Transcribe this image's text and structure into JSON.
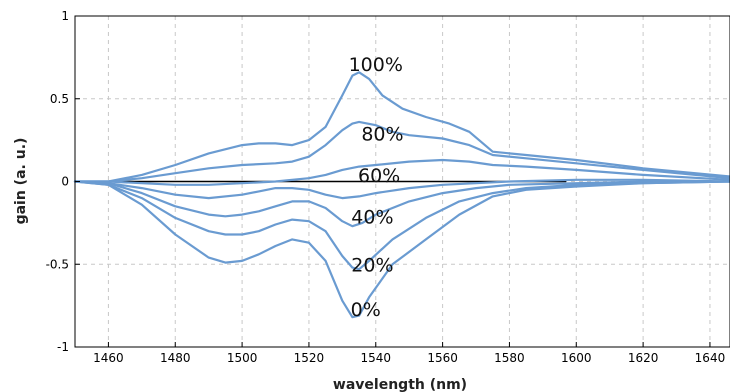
{
  "chart_data": {
    "type": "line",
    "xlabel": "wavelength (nm)",
    "ylabel": "gain (a. u.)",
    "xlim": [
      1450,
      1646
    ],
    "ylim": [
      -1,
      1
    ],
    "x_ticks": [
      1460,
      1480,
      1500,
      1520,
      1540,
      1560,
      1580,
      1600,
      1620,
      1640
    ],
    "y_ticks": [
      -1,
      -0.5,
      0,
      0.5,
      1
    ],
    "y_tick_labels": [
      "-1",
      "-0.5",
      "0",
      "0.5",
      "1"
    ],
    "grid": true,
    "line_color": "#6a9bd1",
    "reference_line": {
      "y": 0,
      "x_range": [
        1450,
        1597
      ],
      "color": "#000000"
    },
    "series": [
      {
        "label": "100%",
        "label_at": [
          1540,
          0.71
        ],
        "points": [
          [
            1450,
            0
          ],
          [
            1460,
            0.0
          ],
          [
            1470,
            0.04
          ],
          [
            1480,
            0.1
          ],
          [
            1490,
            0.17
          ],
          [
            1500,
            0.22
          ],
          [
            1505,
            0.23
          ],
          [
            1510,
            0.23
          ],
          [
            1515,
            0.22
          ],
          [
            1520,
            0.25
          ],
          [
            1525,
            0.33
          ],
          [
            1530,
            0.52
          ],
          [
            1533,
            0.64
          ],
          [
            1535,
            0.66
          ],
          [
            1538,
            0.62
          ],
          [
            1542,
            0.52
          ],
          [
            1548,
            0.44
          ],
          [
            1555,
            0.39
          ],
          [
            1562,
            0.35
          ],
          [
            1568,
            0.3
          ],
          [
            1575,
            0.18
          ],
          [
            1585,
            0.16
          ],
          [
            1600,
            0.13
          ],
          [
            1620,
            0.08
          ],
          [
            1646,
            0.03
          ]
        ]
      },
      {
        "label": "80%",
        "label_at": [
          1542,
          0.29
        ],
        "points": [
          [
            1450,
            0
          ],
          [
            1460,
            0.0
          ],
          [
            1470,
            0.02
          ],
          [
            1480,
            0.05
          ],
          [
            1490,
            0.08
          ],
          [
            1500,
            0.1
          ],
          [
            1510,
            0.11
          ],
          [
            1515,
            0.12
          ],
          [
            1520,
            0.15
          ],
          [
            1525,
            0.22
          ],
          [
            1530,
            0.31
          ],
          [
            1533,
            0.35
          ],
          [
            1535,
            0.36
          ],
          [
            1540,
            0.34
          ],
          [
            1545,
            0.3
          ],
          [
            1550,
            0.28
          ],
          [
            1560,
            0.26
          ],
          [
            1568,
            0.22
          ],
          [
            1575,
            0.16
          ],
          [
            1585,
            0.14
          ],
          [
            1600,
            0.11
          ],
          [
            1620,
            0.07
          ],
          [
            1646,
            0.02
          ]
        ]
      },
      {
        "label": "60%",
        "label_at": [
          1541,
          0.04
        ],
        "points": [
          [
            1450,
            0
          ],
          [
            1460,
            0.0
          ],
          [
            1470,
            -0.01
          ],
          [
            1480,
            -0.02
          ],
          [
            1490,
            -0.02
          ],
          [
            1500,
            -0.01
          ],
          [
            1510,
            0.0
          ],
          [
            1520,
            0.02
          ],
          [
            1525,
            0.04
          ],
          [
            1530,
            0.07
          ],
          [
            1535,
            0.09
          ],
          [
            1540,
            0.1
          ],
          [
            1550,
            0.12
          ],
          [
            1560,
            0.13
          ],
          [
            1568,
            0.12
          ],
          [
            1575,
            0.1
          ],
          [
            1585,
            0.09
          ],
          [
            1600,
            0.07
          ],
          [
            1620,
            0.04
          ],
          [
            1646,
            0.01
          ]
        ]
      },
      {
        "label": "40%",
        "label_at": [
          1539,
          -0.21
        ],
        "points": [
          [
            1450,
            0
          ],
          [
            1460,
            -0.01
          ],
          [
            1470,
            -0.04
          ],
          [
            1480,
            -0.08
          ],
          [
            1490,
            -0.1
          ],
          [
            1500,
            -0.08
          ],
          [
            1505,
            -0.06
          ],
          [
            1510,
            -0.04
          ],
          [
            1515,
            -0.04
          ],
          [
            1520,
            -0.05
          ],
          [
            1525,
            -0.08
          ],
          [
            1530,
            -0.1
          ],
          [
            1535,
            -0.09
          ],
          [
            1540,
            -0.07
          ],
          [
            1550,
            -0.04
          ],
          [
            1560,
            -0.02
          ],
          [
            1570,
            -0.01
          ],
          [
            1580,
            0.0
          ],
          [
            1600,
            0.01
          ],
          [
            1620,
            0.01
          ],
          [
            1646,
            0.0
          ]
        ]
      },
      {
        "label": "20%",
        "label_at": [
          1539,
          -0.5
        ],
        "points": [
          [
            1450,
            0
          ],
          [
            1460,
            -0.01
          ],
          [
            1470,
            -0.07
          ],
          [
            1480,
            -0.15
          ],
          [
            1490,
            -0.2
          ],
          [
            1495,
            -0.21
          ],
          [
            1500,
            -0.2
          ],
          [
            1505,
            -0.18
          ],
          [
            1510,
            -0.15
          ],
          [
            1515,
            -0.12
          ],
          [
            1520,
            -0.12
          ],
          [
            1525,
            -0.16
          ],
          [
            1530,
            -0.24
          ],
          [
            1533,
            -0.27
          ],
          [
            1536,
            -0.25
          ],
          [
            1540,
            -0.2
          ],
          [
            1550,
            -0.12
          ],
          [
            1560,
            -0.07
          ],
          [
            1570,
            -0.04
          ],
          [
            1580,
            -0.02
          ],
          [
            1600,
            -0.01
          ],
          [
            1620,
            0.0
          ],
          [
            1646,
            0.0
          ]
        ]
      },
      {
        "label": "0%",
        "label_at": [
          1537,
          -0.77
        ],
        "points": [
          [
            1450,
            0
          ],
          [
            1460,
            -0.02
          ],
          [
            1470,
            -0.1
          ],
          [
            1480,
            -0.22
          ],
          [
            1490,
            -0.3
          ],
          [
            1495,
            -0.32
          ],
          [
            1500,
            -0.32
          ],
          [
            1505,
            -0.3
          ],
          [
            1510,
            -0.26
          ],
          [
            1515,
            -0.23
          ],
          [
            1520,
            -0.24
          ],
          [
            1525,
            -0.3
          ],
          [
            1530,
            -0.45
          ],
          [
            1533,
            -0.52
          ],
          [
            1535,
            -0.53
          ],
          [
            1538,
            -0.48
          ],
          [
            1545,
            -0.35
          ],
          [
            1555,
            -0.22
          ],
          [
            1565,
            -0.12
          ],
          [
            1575,
            -0.07
          ],
          [
            1585,
            -0.04
          ],
          [
            1600,
            -0.02
          ],
          [
            1620,
            -0.01
          ],
          [
            1646,
            0.0
          ]
        ]
      },
      {
        "label": "",
        "points": [
          [
            1450,
            0
          ],
          [
            1460,
            -0.02
          ],
          [
            1470,
            -0.14
          ],
          [
            1480,
            -0.32
          ],
          [
            1490,
            -0.46
          ],
          [
            1495,
            -0.49
          ],
          [
            1500,
            -0.48
          ],
          [
            1505,
            -0.44
          ],
          [
            1510,
            -0.39
          ],
          [
            1515,
            -0.35
          ],
          [
            1520,
            -0.37
          ],
          [
            1525,
            -0.48
          ],
          [
            1530,
            -0.72
          ],
          [
            1533,
            -0.82
          ],
          [
            1535,
            -0.81
          ],
          [
            1538,
            -0.7
          ],
          [
            1545,
            -0.5
          ],
          [
            1555,
            -0.35
          ],
          [
            1565,
            -0.2
          ],
          [
            1575,
            -0.09
          ],
          [
            1585,
            -0.05
          ],
          [
            1600,
            -0.03
          ],
          [
            1620,
            -0.01
          ],
          [
            1646,
            0.0
          ]
        ]
      }
    ]
  }
}
